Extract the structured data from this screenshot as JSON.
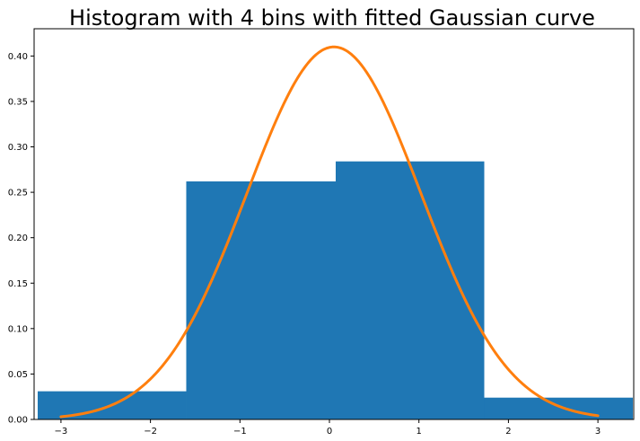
{
  "chart_data": {
    "type": "bar",
    "title": "Histogram with 4 bins with fitted Gaussian curve",
    "xlabel": "",
    "ylabel": "",
    "xlim": [
      -3.3,
      3.4
    ],
    "ylim": [
      0,
      0.43
    ],
    "grid": false,
    "x_ticks": [
      {
        "value": -3,
        "label": "−3"
      },
      {
        "value": -2,
        "label": "−2"
      },
      {
        "value": -1,
        "label": "−1"
      },
      {
        "value": 0,
        "label": "0"
      },
      {
        "value": 1,
        "label": "1"
      },
      {
        "value": 2,
        "label": "2"
      },
      {
        "value": 3,
        "label": "3"
      }
    ],
    "y_ticks": [
      {
        "value": 0.0,
        "label": "0.00"
      },
      {
        "value": 0.05,
        "label": "0.05"
      },
      {
        "value": 0.1,
        "label": "0.10"
      },
      {
        "value": 0.15,
        "label": "0.15"
      },
      {
        "value": 0.2,
        "label": "0.20"
      },
      {
        "value": 0.25,
        "label": "0.25"
      },
      {
        "value": 0.3,
        "label": "0.30"
      },
      {
        "value": 0.35,
        "label": "0.35"
      },
      {
        "value": 0.4,
        "label": "0.40"
      }
    ],
    "bins": [
      {
        "x0": -3.26,
        "x1": -1.6,
        "value": 0.031
      },
      {
        "x0": -1.6,
        "x1": 0.07,
        "value": 0.262
      },
      {
        "x0": 0.07,
        "x1": 1.73,
        "value": 0.284
      },
      {
        "x0": 1.73,
        "x1": 3.39,
        "value": 0.024
      }
    ],
    "bar_color": "#1f77b4",
    "curve": {
      "type": "gaussian",
      "mean": 0.05,
      "std": 0.973,
      "x_range": [
        -3.0,
        3.0
      ],
      "color": "#ff7f0e"
    }
  }
}
